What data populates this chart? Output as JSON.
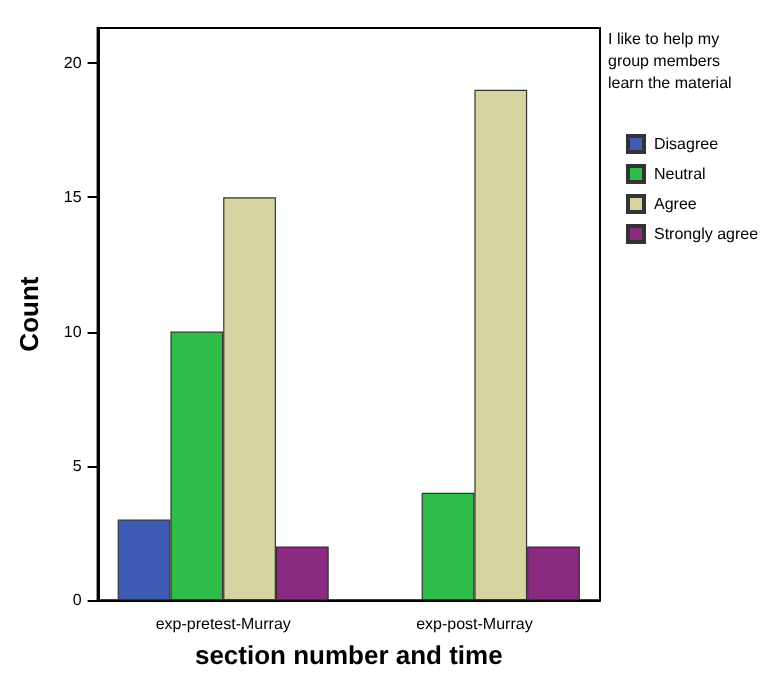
{
  "chart_data": {
    "type": "bar",
    "xlabel": "section number and time",
    "ylabel": "Count",
    "legend_title": "I like to help my group members learn the material",
    "categories": [
      "exp-pretest-Murray",
      "exp-post-Murray"
    ],
    "series": [
      {
        "name": "Disagree",
        "color": "#3f5cb5",
        "values": [
          3,
          0
        ]
      },
      {
        "name": "Neutral",
        "color": "#2fbd4a",
        "values": [
          10,
          4
        ]
      },
      {
        "name": "Agree",
        "color": "#d6d4a0",
        "values": [
          15,
          19
        ]
      },
      {
        "name": "Strongly agree",
        "color": "#8a2a80",
        "values": [
          2,
          2
        ]
      }
    ],
    "ylim": [
      0,
      21.3
    ],
    "yticks": [
      0,
      5,
      10,
      15,
      20
    ],
    "grid": false,
    "legend": "right"
  }
}
